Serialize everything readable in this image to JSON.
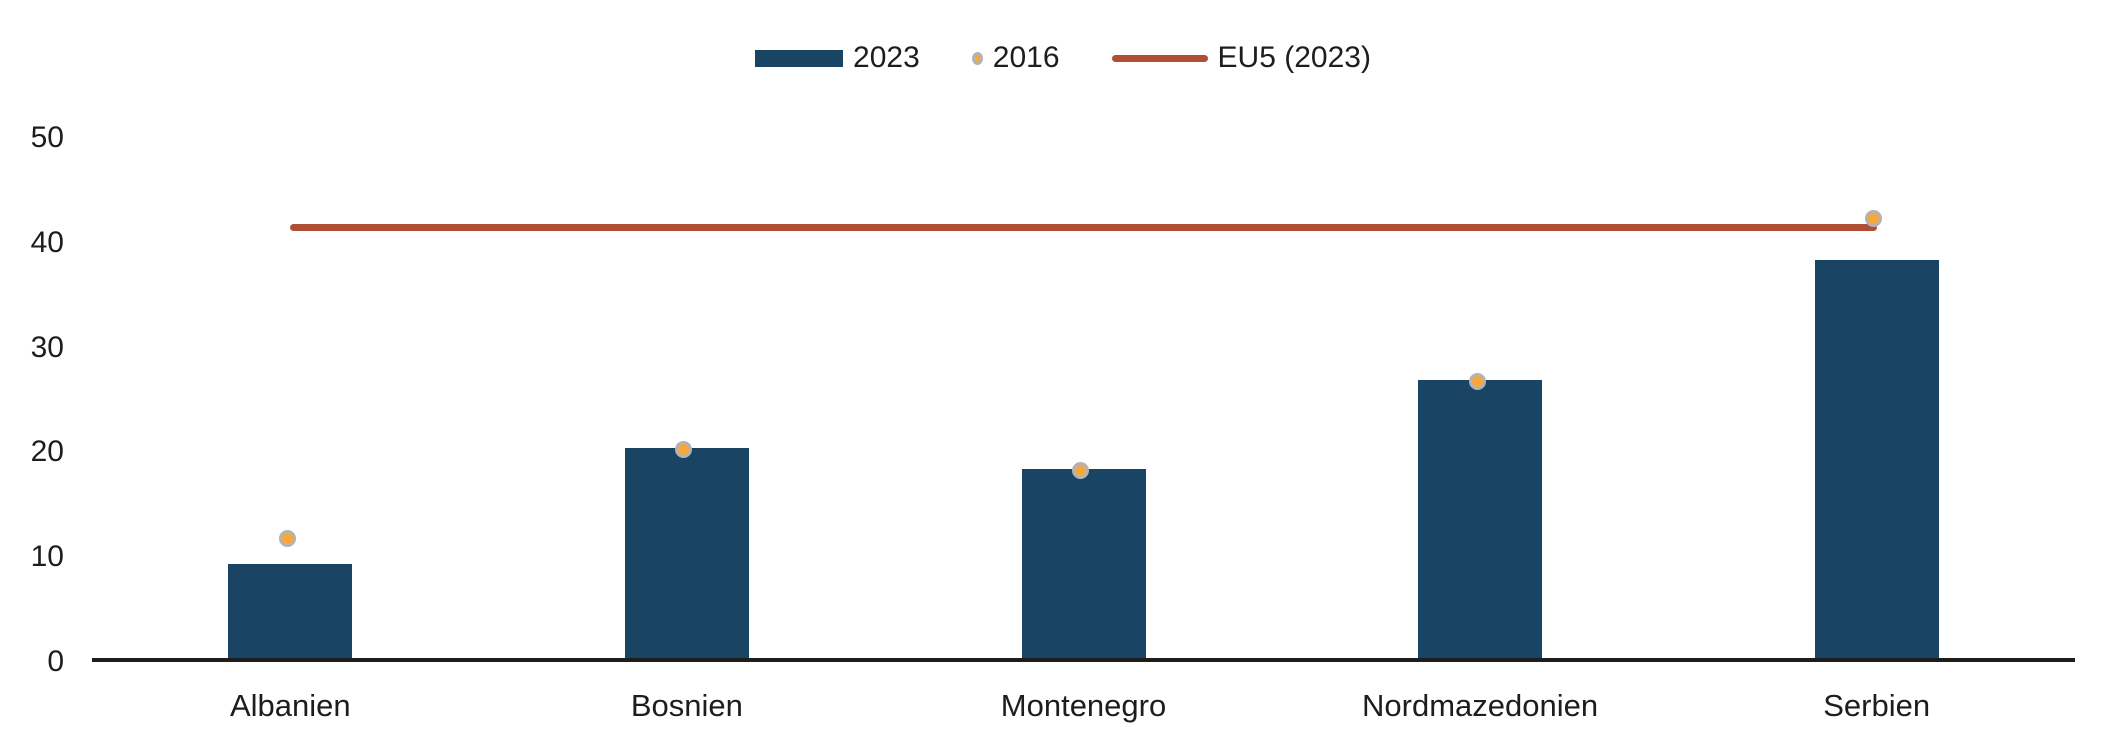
{
  "colors": {
    "bar": "#1A4464",
    "dot_fill": "#F7A83D",
    "dot_ring": "#B3B3B3",
    "reference_line": "#B04F35",
    "axis_text": "#1D1D1B",
    "background": "#FFFFFF"
  },
  "legend": {
    "position": "top-center",
    "items": [
      {
        "label": "2023",
        "swatch": "bar"
      },
      {
        "label": "2016",
        "swatch": "dot"
      },
      {
        "label": "EU5 (2023)",
        "swatch": "line"
      }
    ]
  },
  "chart_data": {
    "type": "bar",
    "title": "",
    "xlabel": "",
    "ylabel": "",
    "categories": [
      "Albanien",
      "Bosnien",
      "Montenegro",
      "Nordmazedonien",
      "Serbien"
    ],
    "series": [
      {
        "name": "2023",
        "type": "bar",
        "values": [
          9,
          20,
          18,
          26.5,
          38
        ]
      },
      {
        "name": "2016",
        "type": "scatter",
        "values": [
          11.5,
          20,
          18,
          26.5,
          42
        ]
      },
      {
        "name": "EU5 (2023)",
        "type": "reference-line",
        "value": 41.5
      }
    ],
    "ylim": [
      0,
      50
    ],
    "yticks": [
      0,
      10,
      20,
      30,
      40,
      50
    ],
    "grid": false,
    "legend_position": "top-center"
  }
}
